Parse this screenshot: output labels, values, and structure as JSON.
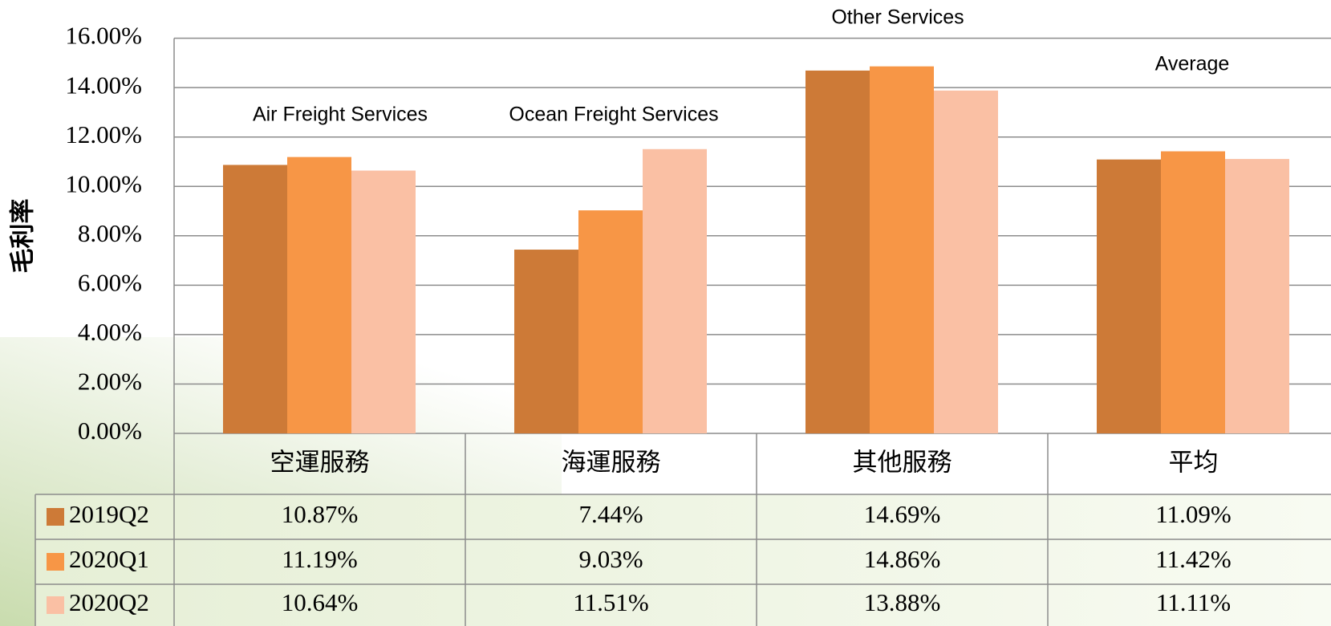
{
  "chart_data": {
    "type": "bar",
    "y_label": "毛利率",
    "categories": [
      "空運服務",
      "海運服務",
      "其他服務",
      "平均"
    ],
    "annotations": [
      "Air Freight Services",
      "Ocean Freight Services",
      "Other Services",
      "Average"
    ],
    "series": [
      {
        "name": "2019Q2",
        "color": "#cd7a37",
        "values": [
          10.87,
          7.44,
          14.69,
          11.09
        ],
        "value_labels": [
          "10.87%",
          "7.44%",
          "14.69%",
          "11.09%"
        ]
      },
      {
        "name": "2020Q1",
        "color": "#f79646",
        "values": [
          11.19,
          9.03,
          14.86,
          11.42
        ],
        "value_labels": [
          "11.19%",
          "9.03%",
          "14.86%",
          "11.42%"
        ]
      },
      {
        "name": "2020Q2",
        "color": "#fac0a4",
        "values": [
          10.64,
          11.51,
          13.88,
          11.11
        ],
        "value_labels": [
          "10.64%",
          "11.51%",
          "13.88%",
          "11.11%"
        ]
      }
    ],
    "ylim": [
      0,
      16
    ],
    "yticks": [
      {
        "value": 0,
        "label": "0.00%"
      },
      {
        "value": 2,
        "label": "2.00%"
      },
      {
        "value": 4,
        "label": "4.00%"
      },
      {
        "value": 6,
        "label": "6.00%"
      },
      {
        "value": 8,
        "label": "8.00%"
      },
      {
        "value": 10,
        "label": "10.00%"
      },
      {
        "value": 12,
        "label": "12.00%"
      },
      {
        "value": 14,
        "label": "14.00%"
      },
      {
        "value": 16,
        "label": "16.00%"
      }
    ],
    "grid": true
  }
}
